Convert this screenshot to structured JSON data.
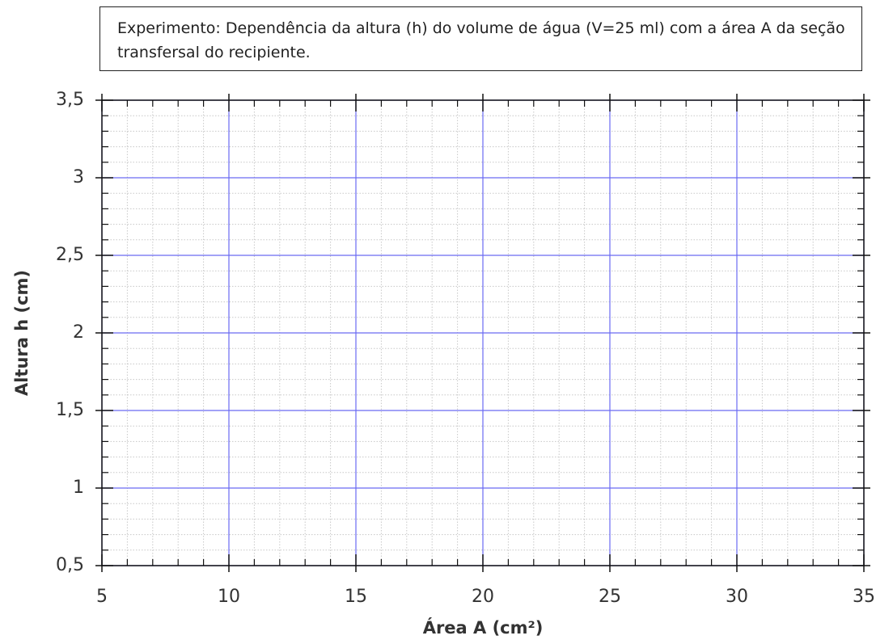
{
  "chart_data": {
    "type": "scatter",
    "title": "Experimento: Dependência da altura (h) do volume de água (V=25 ml) com a área A da seção transfersal do recipiente.",
    "x_label": "Área A (cm²)",
    "y_label": "Altura h (cm)",
    "xlim": [
      5,
      35
    ],
    "ylim": [
      0.5,
      3.5
    ],
    "xticks": [
      5,
      10,
      15,
      20,
      25,
      30,
      35
    ],
    "yticks": [
      {
        "value": 0.5,
        "label": "0,5"
      },
      1,
      {
        "value": 1.5,
        "label": "1,5"
      },
      2,
      {
        "value": 2.5,
        "label": "2,5"
      },
      3,
      {
        "value": 3.5,
        "label": "3,5"
      }
    ],
    "grid": true,
    "minor_grid": true,
    "grid_color": "#6a6af2"
  }
}
